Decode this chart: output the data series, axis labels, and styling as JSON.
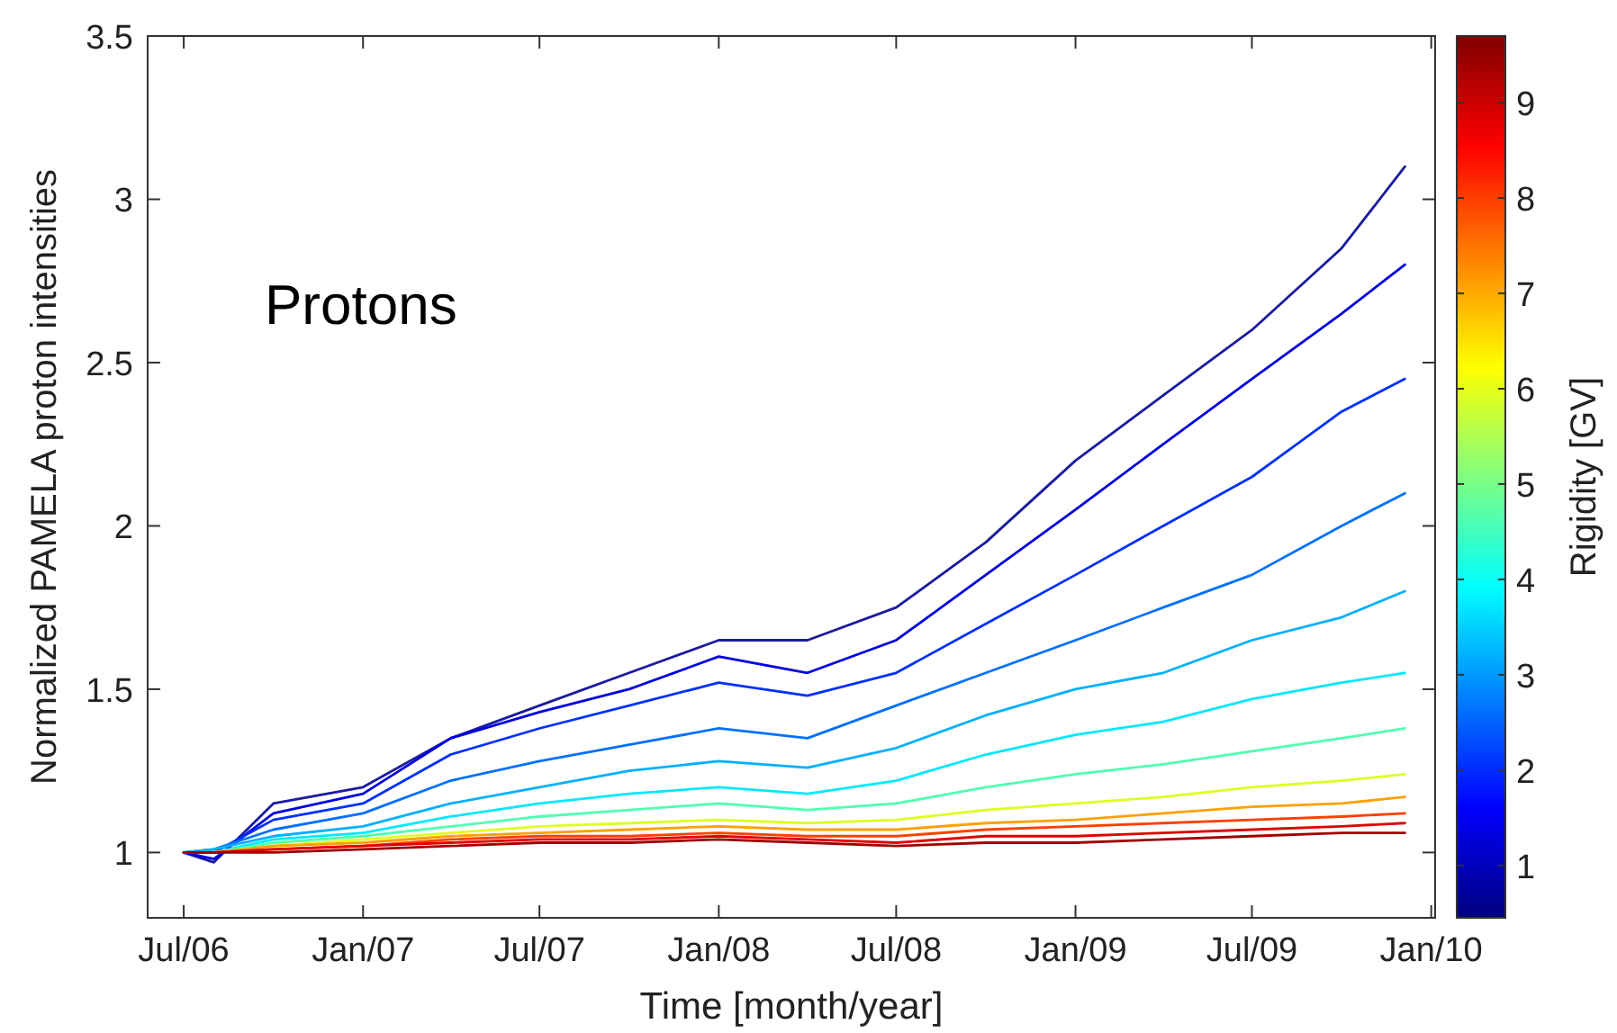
{
  "chart_data": {
    "type": "line",
    "ylabel": "Normalized PAMELA proton intensities",
    "xlabel": "Time [month/year]",
    "clabel": "Rigidity [GV]",
    "annotations": [
      "Protons"
    ],
    "x": [
      "2006-07-01",
      "2006-08-01",
      "2006-10-01",
      "2007-01-01",
      "2007-04-01",
      "2007-07-01",
      "2007-10-01",
      "2008-01-01",
      "2008-04-01",
      "2008-07-01",
      "2008-10-01",
      "2009-01-01",
      "2009-04-01",
      "2009-07-01",
      "2009-10-01",
      "2009-12-05"
    ],
    "xlim": [
      "2006-05-25",
      "2010-01-05"
    ],
    "xticks": [
      {
        "value": "2006-07-01",
        "label": "Jul/06"
      },
      {
        "value": "2007-01-01",
        "label": "Jan/07"
      },
      {
        "value": "2007-07-01",
        "label": "Jul/07"
      },
      {
        "value": "2008-01-01",
        "label": "Jan/08"
      },
      {
        "value": "2008-07-01",
        "label": "Jul/08"
      },
      {
        "value": "2009-01-01",
        "label": "Jan/09"
      },
      {
        "value": "2009-07-01",
        "label": "Jul/09"
      },
      {
        "value": "2010-01-01",
        "label": "Jan/10"
      }
    ],
    "ylim": [
      0.8,
      3.5
    ],
    "yticks": [
      1,
      1.5,
      2,
      2.5,
      3,
      3.5
    ],
    "clim": [
      0.45,
      9.7
    ],
    "cticks": [
      1,
      2,
      3,
      4,
      5,
      6,
      7,
      8,
      9
    ],
    "grid": false,
    "marker": "none",
    "line_style": "solid",
    "series": [
      {
        "color": "#1a1aa0",
        "values": [
          1,
          0.97,
          1.15,
          1.2,
          1.35,
          1.45,
          1.55,
          1.65,
          1.65,
          1.75,
          1.95,
          2.2,
          2.4,
          2.6,
          2.85,
          3.1
        ]
      },
      {
        "color": "#0000e0",
        "values": [
          1,
          0.98,
          1.12,
          1.18,
          1.35,
          1.43,
          1.5,
          1.6,
          1.55,
          1.65,
          1.85,
          2.05,
          2.25,
          2.45,
          2.65,
          2.8
        ]
      },
      {
        "color": "#0030ff",
        "values": [
          1,
          1,
          1.1,
          1.15,
          1.3,
          1.38,
          1.45,
          1.52,
          1.48,
          1.55,
          1.7,
          1.85,
          2,
          2.15,
          2.35,
          2.45
        ]
      },
      {
        "color": "#0070ff",
        "values": [
          1,
          1.01,
          1.07,
          1.12,
          1.22,
          1.28,
          1.33,
          1.38,
          1.35,
          1.45,
          1.55,
          1.65,
          1.75,
          1.85,
          2,
          2.1
        ]
      },
      {
        "color": "#00b0ff",
        "values": [
          1,
          1.01,
          1.05,
          1.08,
          1.15,
          1.2,
          1.25,
          1.28,
          1.26,
          1.32,
          1.42,
          1.5,
          1.55,
          1.65,
          1.72,
          1.8
        ]
      },
      {
        "color": "#00e8ff",
        "values": [
          1,
          1,
          1.04,
          1.06,
          1.11,
          1.15,
          1.18,
          1.2,
          1.18,
          1.22,
          1.3,
          1.36,
          1.4,
          1.47,
          1.52,
          1.55
        ]
      },
      {
        "color": "#50ffb0",
        "values": [
          1,
          1,
          1.03,
          1.05,
          1.08,
          1.11,
          1.13,
          1.15,
          1.13,
          1.15,
          1.2,
          1.24,
          1.27,
          1.31,
          1.35,
          1.38
        ]
      },
      {
        "color": "#e0ff20",
        "values": [
          1,
          1,
          1.02,
          1.04,
          1.06,
          1.08,
          1.09,
          1.1,
          1.09,
          1.1,
          1.13,
          1.15,
          1.17,
          1.2,
          1.22,
          1.24
        ]
      },
      {
        "color": "#ffa000",
        "values": [
          1,
          1,
          1.02,
          1.03,
          1.05,
          1.06,
          1.07,
          1.08,
          1.07,
          1.07,
          1.09,
          1.1,
          1.12,
          1.14,
          1.15,
          1.17
        ]
      },
      {
        "color": "#ff4000",
        "values": [
          1,
          1,
          1.01,
          1.02,
          1.04,
          1.05,
          1.05,
          1.06,
          1.05,
          1.05,
          1.07,
          1.08,
          1.09,
          1.1,
          1.11,
          1.12
        ]
      },
      {
        "color": "#e00000",
        "values": [
          1,
          1,
          1.01,
          1.02,
          1.03,
          1.04,
          1.04,
          1.05,
          1.04,
          1.03,
          1.05,
          1.05,
          1.06,
          1.07,
          1.08,
          1.09
        ]
      },
      {
        "color": "#a00000",
        "values": [
          1,
          1,
          1,
          1.01,
          1.02,
          1.03,
          1.03,
          1.04,
          1.03,
          1.02,
          1.03,
          1.03,
          1.04,
          1.05,
          1.06,
          1.06
        ]
      }
    ]
  }
}
